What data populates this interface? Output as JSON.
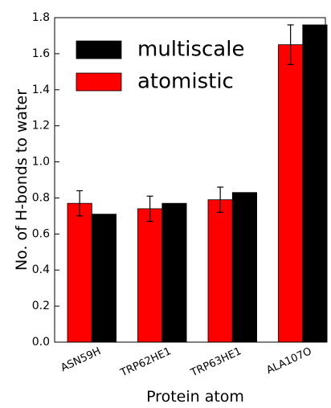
{
  "chart_data": {
    "type": "bar",
    "xlabel": "Protein atom",
    "ylabel": "No. of H-bonds to water",
    "categories": [
      "ASN59H",
      "TRP62HE1",
      "TRP63HE1",
      "ALA107O"
    ],
    "series": [
      {
        "name": "atomistic",
        "color": "#ff0000",
        "values": [
          0.77,
          0.74,
          0.79,
          1.65
        ],
        "errors": [
          0.07,
          0.07,
          0.07,
          0.11
        ]
      },
      {
        "name": "multiscale",
        "color": "#000000",
        "values": [
          0.71,
          0.77,
          0.83,
          1.76
        ]
      }
    ],
    "ylim": [
      0,
      1.8
    ],
    "yticks": [
      {
        "value": 0,
        "label": "0.0"
      },
      0.2,
      0.4,
      0.6,
      0.8,
      {
        "value": 1,
        "label": "1.0"
      },
      1.2,
      1.4,
      1.6,
      1.8
    ],
    "legend": "upper left"
  }
}
